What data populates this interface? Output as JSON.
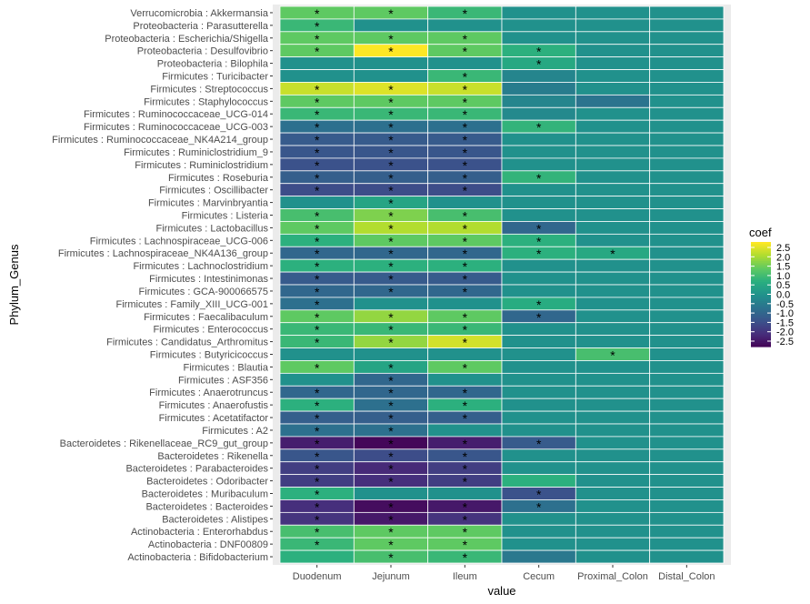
{
  "chart_data": {
    "type": "heatmap",
    "xlabel": "value",
    "ylabel": "Phylum_Genus",
    "x": [
      "Duodenum",
      "Jejunum",
      "Ileum",
      "Cecum",
      "Proximal_Colon",
      "Distal_Colon"
    ],
    "y": [
      "Verrucomicrobia : Akkermansia",
      "Proteobacteria : Parasutterella",
      "Proteobacteria : Escherichia/Shigella",
      "Proteobacteria : Desulfovibrio",
      "Proteobacteria : Bilophila",
      "Firmicutes : Turicibacter",
      "Firmicutes : Streptococcus",
      "Firmicutes : Staphylococcus",
      "Firmicutes : Ruminococcaceae_UCG-014",
      "Firmicutes : Ruminococcaceae_UCG-003",
      "Firmicutes : Ruminococcaceae_NK4A214_group",
      "Firmicutes : Ruminiclostridium_9",
      "Firmicutes : Ruminiclostridium",
      "Firmicutes : Roseburia",
      "Firmicutes : Oscillibacter",
      "Firmicutes : Marvinbryantia",
      "Firmicutes : Listeria",
      "Firmicutes : Lactobacillus",
      "Firmicutes : Lachnospiraceae_UCG-006",
      "Firmicutes : Lachnospiraceae_NK4A136_group",
      "Firmicutes : Lachnoclostridium",
      "Firmicutes : Intestinimonas",
      "Firmicutes : GCA-900066575",
      "Firmicutes : Family_XIII_UCG-001",
      "Firmicutes : Faecalibaculum",
      "Firmicutes : Enterococcus",
      "Firmicutes : Candidatus_Arthromitus",
      "Firmicutes : Butyricicoccus",
      "Firmicutes : Blautia",
      "Firmicutes : ASF356",
      "Firmicutes : Anaerotruncus",
      "Firmicutes : Anaerofustis",
      "Firmicutes : Acetatifactor",
      "Firmicutes : A2",
      "Bacteroidetes : Rikenellaceae_RC9_gut_group",
      "Bacteroidetes : Rikenella",
      "Bacteroidetes : Parabacteroides",
      "Bacteroidetes : Odoribacter",
      "Bacteroidetes : Muribaculum",
      "Bacteroidetes : Bacteroides",
      "Bacteroidetes : Alistipes",
      "Actinobacteria : Enterorhabdus",
      "Actinobacteria : DNF00809",
      "Actinobacteria : Bifidobacterium"
    ],
    "values": [
      [
        1.5,
        1.5,
        1.0,
        0,
        0,
        0
      ],
      [
        1.0,
        0,
        0,
        0,
        0,
        0
      ],
      [
        1.5,
        1.5,
        1.5,
        0,
        0,
        0
      ],
      [
        1.5,
        3.0,
        1.5,
        0.8,
        0,
        0
      ],
      [
        0,
        0,
        0,
        0.6,
        0,
        0
      ],
      [
        0,
        0,
        1.0,
        -0.3,
        0,
        0
      ],
      [
        2.5,
        2.7,
        2.5,
        -0.5,
        0,
        0
      ],
      [
        1.5,
        1.5,
        1.5,
        -0.3,
        -0.7,
        0
      ],
      [
        1.0,
        1.0,
        1.0,
        -0.2,
        0,
        0
      ],
      [
        -0.8,
        -0.8,
        -0.8,
        0.9,
        0,
        0
      ],
      [
        -1.3,
        -1.3,
        -1.3,
        0,
        0,
        0
      ],
      [
        -1.4,
        -1.4,
        -1.4,
        0,
        0,
        0
      ],
      [
        -1.5,
        -1.5,
        -1.5,
        0,
        0,
        0
      ],
      [
        -1.2,
        -1.2,
        -1.2,
        0.9,
        0,
        0
      ],
      [
        -1.6,
        -1.6,
        -1.6,
        0,
        0,
        0
      ],
      [
        0,
        0.5,
        0,
        0,
        0,
        0
      ],
      [
        1.2,
        1.8,
        1.2,
        0,
        0,
        0
      ],
      [
        1.5,
        2.3,
        2.3,
        -1.0,
        0,
        0
      ],
      [
        0.8,
        1.5,
        1.5,
        0.8,
        0,
        0
      ],
      [
        -1.0,
        -1.0,
        -1.0,
        0.8,
        0.6,
        0
      ],
      [
        0.8,
        0.8,
        0.8,
        0,
        0,
        0
      ],
      [
        -1.3,
        -1.3,
        -1.3,
        0,
        0,
        0
      ],
      [
        -1.0,
        -1.0,
        -1.0,
        0,
        0,
        0
      ],
      [
        -0.8,
        0,
        0,
        0.7,
        0,
        0
      ],
      [
        1.5,
        2.0,
        1.5,
        -1.0,
        0,
        0
      ],
      [
        1.0,
        1.0,
        1.0,
        0,
        0,
        0
      ],
      [
        1.0,
        2.0,
        2.6,
        0,
        0,
        0
      ],
      [
        0,
        0,
        0,
        0,
        1.2,
        0
      ],
      [
        1.5,
        0.5,
        1.5,
        0,
        0,
        0
      ],
      [
        0,
        -1.0,
        0,
        0,
        0,
        0
      ],
      [
        -1.0,
        -1.0,
        -1.0,
        0,
        0,
        0
      ],
      [
        0.8,
        -0.8,
        0.8,
        0,
        0,
        0
      ],
      [
        -1.2,
        -1.2,
        -1.2,
        0,
        0,
        0
      ],
      [
        -0.8,
        -0.8,
        0,
        0,
        0,
        0
      ],
      [
        -2.5,
        -2.9,
        -2.5,
        -1.3,
        0,
        0
      ],
      [
        -1.4,
        -1.6,
        -1.4,
        0,
        0,
        0
      ],
      [
        -1.9,
        -2.3,
        -1.9,
        0,
        0,
        0
      ],
      [
        -1.9,
        -2.2,
        -1.9,
        0.8,
        0,
        0
      ],
      [
        0.8,
        0,
        0,
        -1.5,
        0,
        0
      ],
      [
        -2.2,
        -2.8,
        -2.6,
        -0.8,
        0,
        0
      ],
      [
        -2.1,
        -2.6,
        -2.1,
        0,
        0,
        0
      ],
      [
        1.2,
        1.5,
        1.5,
        0,
        0,
        0
      ],
      [
        1.0,
        1.5,
        1.5,
        0,
        0,
        0
      ],
      [
        0.8,
        1.2,
        1.0,
        -0.6,
        0,
        0
      ]
    ],
    "significant": [
      [
        1,
        1,
        1,
        0,
        0,
        0
      ],
      [
        1,
        0,
        0,
        0,
        0,
        0
      ],
      [
        1,
        1,
        1,
        0,
        0,
        0
      ],
      [
        1,
        1,
        1,
        1,
        0,
        0
      ],
      [
        0,
        0,
        0,
        1,
        0,
        0
      ],
      [
        0,
        0,
        1,
        0,
        0,
        0
      ],
      [
        1,
        1,
        1,
        0,
        0,
        0
      ],
      [
        1,
        1,
        1,
        0,
        0,
        0
      ],
      [
        1,
        1,
        1,
        0,
        0,
        0
      ],
      [
        1,
        1,
        1,
        1,
        0,
        0
      ],
      [
        1,
        1,
        1,
        0,
        0,
        0
      ],
      [
        1,
        1,
        1,
        0,
        0,
        0
      ],
      [
        1,
        1,
        1,
        0,
        0,
        0
      ],
      [
        1,
        1,
        1,
        1,
        0,
        0
      ],
      [
        1,
        1,
        1,
        0,
        0,
        0
      ],
      [
        0,
        1,
        0,
        0,
        0,
        0
      ],
      [
        1,
        1,
        1,
        0,
        0,
        0
      ],
      [
        1,
        1,
        1,
        1,
        0,
        0
      ],
      [
        1,
        1,
        1,
        1,
        0,
        0
      ],
      [
        1,
        1,
        1,
        1,
        1,
        0
      ],
      [
        1,
        1,
        1,
        0,
        0,
        0
      ],
      [
        1,
        1,
        1,
        0,
        0,
        0
      ],
      [
        1,
        1,
        1,
        0,
        0,
        0
      ],
      [
        1,
        0,
        0,
        1,
        0,
        0
      ],
      [
        1,
        1,
        1,
        1,
        0,
        0
      ],
      [
        1,
        1,
        1,
        0,
        0,
        0
      ],
      [
        1,
        1,
        1,
        0,
        0,
        0
      ],
      [
        0,
        0,
        0,
        0,
        1,
        0
      ],
      [
        1,
        1,
        1,
        0,
        0,
        0
      ],
      [
        0,
        1,
        0,
        0,
        0,
        0
      ],
      [
        1,
        1,
        1,
        0,
        0,
        0
      ],
      [
        1,
        1,
        1,
        0,
        0,
        0
      ],
      [
        1,
        1,
        1,
        0,
        0,
        0
      ],
      [
        1,
        1,
        0,
        0,
        0,
        0
      ],
      [
        1,
        1,
        1,
        1,
        0,
        0
      ],
      [
        1,
        1,
        1,
        0,
        0,
        0
      ],
      [
        1,
        1,
        1,
        0,
        0,
        0
      ],
      [
        1,
        1,
        1,
        0,
        0,
        0
      ],
      [
        1,
        0,
        0,
        1,
        0,
        0
      ],
      [
        1,
        1,
        1,
        1,
        0,
        0
      ],
      [
        1,
        1,
        1,
        0,
        0,
        0
      ],
      [
        1,
        1,
        1,
        0,
        0,
        0
      ],
      [
        1,
        1,
        1,
        0,
        0,
        0
      ],
      [
        0,
        1,
        1,
        0,
        0,
        0
      ]
    ],
    "legend": {
      "title": "coef",
      "placement": "right",
      "ticks": [
        "2.5",
        "2.0",
        "1.5",
        "1.0",
        "0.5",
        "0.0",
        "-0.5",
        "-1.0",
        "-1.5",
        "-2.0",
        "-2.5"
      ],
      "tick_values": [
        2.5,
        2.0,
        1.5,
        1.0,
        0.5,
        0.0,
        -0.5,
        -1.0,
        -1.5,
        -2.0,
        -2.5
      ],
      "range": [
        -3,
        3
      ]
    },
    "significance_marker": "*",
    "colormap": [
      "#440154",
      "#472d7b",
      "#3b528b",
      "#2c728e",
      "#21918c",
      "#28ae80",
      "#5ec962",
      "#addc30",
      "#fde725"
    ],
    "grid_color": "#ffffff",
    "panel_background": "#ebebeb"
  }
}
